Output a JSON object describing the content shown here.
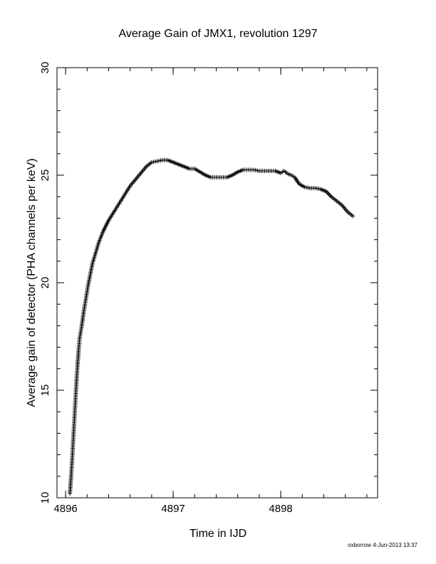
{
  "chart_data": {
    "type": "scatter",
    "title": "Average Gain of JMX1, revolution 1297",
    "xlabel": "Time in IJD",
    "ylabel": "Average gain of detector (PHA channels per keV)",
    "xlim": [
      4895.92,
      4898.9
    ],
    "ylim": [
      10,
      30
    ],
    "xticks": [
      4896,
      4897,
      4898
    ],
    "yticks": [
      10,
      15,
      20,
      25,
      30
    ],
    "marker": "+",
    "grid": false,
    "series": [
      {
        "points": [
          [
            4896.04,
            10.2
          ],
          [
            4896.05,
            10.9
          ],
          [
            4896.06,
            11.7
          ],
          [
            4896.07,
            12.6
          ],
          [
            4896.08,
            13.5
          ],
          [
            4896.09,
            14.4
          ],
          [
            4896.1,
            15.3
          ],
          [
            4896.11,
            16.1
          ],
          [
            4896.12,
            16.8
          ],
          [
            4896.13,
            17.4
          ],
          [
            4896.15,
            18.0
          ],
          [
            4896.17,
            18.7
          ],
          [
            4896.19,
            19.3
          ],
          [
            4896.21,
            19.9
          ],
          [
            4896.23,
            20.4
          ],
          [
            4896.25,
            20.9
          ],
          [
            4896.28,
            21.4
          ],
          [
            4896.31,
            21.9
          ],
          [
            4896.35,
            22.4
          ],
          [
            4896.4,
            22.9
          ],
          [
            4896.45,
            23.3
          ],
          [
            4896.5,
            23.7
          ],
          [
            4896.55,
            24.1
          ],
          [
            4896.6,
            24.5
          ],
          [
            4896.65,
            24.8
          ],
          [
            4896.7,
            25.1
          ],
          [
            4896.75,
            25.4
          ],
          [
            4896.8,
            25.6
          ],
          [
            4896.85,
            25.65
          ],
          [
            4896.9,
            25.7
          ],
          [
            4896.95,
            25.7
          ],
          [
            4897.0,
            25.6
          ],
          [
            4897.05,
            25.5
          ],
          [
            4897.1,
            25.4
          ],
          [
            4897.15,
            25.3
          ],
          [
            4897.2,
            25.3
          ],
          [
            4897.25,
            25.15
          ],
          [
            4897.3,
            25.0
          ],
          [
            4897.35,
            24.9
          ],
          [
            4897.4,
            24.9
          ],
          [
            4897.45,
            24.9
          ],
          [
            4897.5,
            24.9
          ],
          [
            4897.55,
            25.0
          ],
          [
            4897.6,
            25.15
          ],
          [
            4897.65,
            25.25
          ],
          [
            4897.7,
            25.25
          ],
          [
            4897.75,
            25.25
          ],
          [
            4897.8,
            25.2
          ],
          [
            4897.85,
            25.2
          ],
          [
            4897.9,
            25.2
          ],
          [
            4897.95,
            25.2
          ],
          [
            4898.0,
            25.1
          ],
          [
            4898.03,
            25.2
          ],
          [
            4898.07,
            25.05
          ],
          [
            4898.1,
            25.0
          ],
          [
            4898.13,
            24.9
          ],
          [
            4898.17,
            24.6
          ],
          [
            4898.22,
            24.45
          ],
          [
            4898.27,
            24.4
          ],
          [
            4898.32,
            24.4
          ],
          [
            4898.37,
            24.35
          ],
          [
            4898.42,
            24.25
          ],
          [
            4898.47,
            24.0
          ],
          [
            4898.52,
            23.8
          ],
          [
            4898.57,
            23.6
          ],
          [
            4898.62,
            23.3
          ],
          [
            4898.67,
            23.1
          ]
        ]
      }
    ]
  },
  "footer": "oxborrow  4-Jun-2013 13:37"
}
